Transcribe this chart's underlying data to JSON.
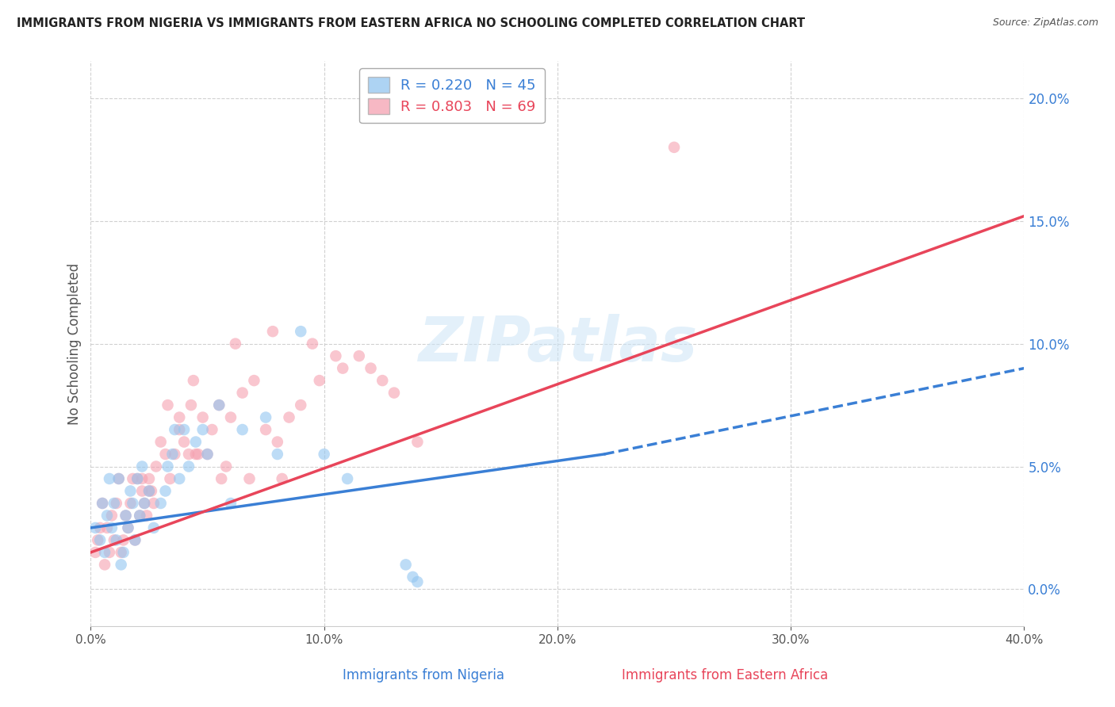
{
  "title": "IMMIGRANTS FROM NIGERIA VS IMMIGRANTS FROM EASTERN AFRICA NO SCHOOLING COMPLETED CORRELATION CHART",
  "source": "Source: ZipAtlas.com",
  "ylabel": "No Schooling Completed",
  "ylabel_ticks": [
    0.0,
    5.0,
    10.0,
    15.0,
    20.0
  ],
  "xticks": [
    0.0,
    10.0,
    20.0,
    30.0,
    40.0
  ],
  "xlim": [
    0.0,
    40.0
  ],
  "ylim": [
    -1.5,
    21.5
  ],
  "legend_label1": "Immigrants from Nigeria",
  "legend_label2": "Immigrants from Eastern Africa",
  "legend_r1": "R = 0.220",
  "legend_n1": "N = 45",
  "legend_r2": "R = 0.803",
  "legend_n2": "N = 69",
  "watermark": "ZIPatlas",
  "color_nigeria": "#92c5f0",
  "color_eastern": "#f5a0b0",
  "color_nigeria_line": "#3a7fd5",
  "color_eastern_line": "#e8455a",
  "nigeria_x": [
    0.2,
    0.4,
    0.5,
    0.6,
    0.7,
    0.8,
    0.9,
    1.0,
    1.1,
    1.2,
    1.3,
    1.4,
    1.5,
    1.6,
    1.7,
    1.8,
    1.9,
    2.0,
    2.1,
    2.2,
    2.3,
    2.5,
    2.7,
    3.0,
    3.2,
    3.5,
    3.8,
    4.0,
    4.2,
    4.5,
    5.0,
    5.5,
    6.5,
    7.5,
    9.0,
    3.3,
    3.6,
    4.8,
    6.0,
    8.0,
    10.0,
    11.0,
    13.5,
    13.8,
    14.0
  ],
  "nigeria_y": [
    2.5,
    2.0,
    3.5,
    1.5,
    3.0,
    4.5,
    2.5,
    3.5,
    2.0,
    4.5,
    1.0,
    1.5,
    3.0,
    2.5,
    4.0,
    3.5,
    2.0,
    4.5,
    3.0,
    5.0,
    3.5,
    4.0,
    2.5,
    3.5,
    4.0,
    5.5,
    4.5,
    6.5,
    5.0,
    6.0,
    5.5,
    7.5,
    6.5,
    7.0,
    10.5,
    5.0,
    6.5,
    6.5,
    3.5,
    5.5,
    5.5,
    4.5,
    1.0,
    0.5,
    0.3
  ],
  "eastern_x": [
    0.2,
    0.3,
    0.4,
    0.5,
    0.6,
    0.7,
    0.8,
    0.9,
    1.0,
    1.1,
    1.2,
    1.3,
    1.4,
    1.5,
    1.6,
    1.7,
    1.8,
    1.9,
    2.0,
    2.1,
    2.2,
    2.3,
    2.4,
    2.5,
    2.6,
    2.7,
    2.8,
    3.0,
    3.2,
    3.4,
    3.6,
    3.8,
    4.0,
    4.2,
    4.5,
    4.8,
    5.0,
    5.5,
    6.0,
    6.5,
    7.0,
    7.5,
    8.0,
    8.5,
    9.0,
    9.5,
    10.5,
    11.5,
    12.5,
    13.0,
    14.0,
    3.3,
    4.3,
    5.2,
    6.2,
    7.8,
    9.8,
    10.8,
    25.0,
    2.2,
    3.8,
    4.6,
    5.8,
    6.8,
    8.2,
    12.0,
    2.5,
    4.4,
    5.6
  ],
  "eastern_y": [
    1.5,
    2.0,
    2.5,
    3.5,
    1.0,
    2.5,
    1.5,
    3.0,
    2.0,
    3.5,
    4.5,
    1.5,
    2.0,
    3.0,
    2.5,
    3.5,
    4.5,
    2.0,
    4.5,
    3.0,
    4.0,
    3.5,
    3.0,
    4.5,
    4.0,
    3.5,
    5.0,
    6.0,
    5.5,
    4.5,
    5.5,
    6.5,
    6.0,
    5.5,
    5.5,
    7.0,
    5.5,
    7.5,
    7.0,
    8.0,
    8.5,
    6.5,
    6.0,
    7.0,
    7.5,
    10.0,
    9.5,
    9.5,
    8.5,
    8.0,
    6.0,
    7.5,
    7.5,
    6.5,
    10.0,
    10.5,
    8.5,
    9.0,
    18.0,
    4.5,
    7.0,
    5.5,
    5.0,
    4.5,
    4.5,
    9.0,
    4.0,
    8.5,
    4.5
  ],
  "nig_line_x0": 0.0,
  "nig_line_y0": 2.5,
  "nig_line_x1": 22.0,
  "nig_line_y1": 5.5,
  "nig_dashed_x0": 22.0,
  "nig_dashed_y0": 5.5,
  "nig_dashed_x1": 40.0,
  "nig_dashed_y1": 9.0,
  "eas_line_x0": 0.0,
  "eas_line_y0": 1.5,
  "eas_line_x1": 40.0,
  "eas_line_y1": 15.2
}
